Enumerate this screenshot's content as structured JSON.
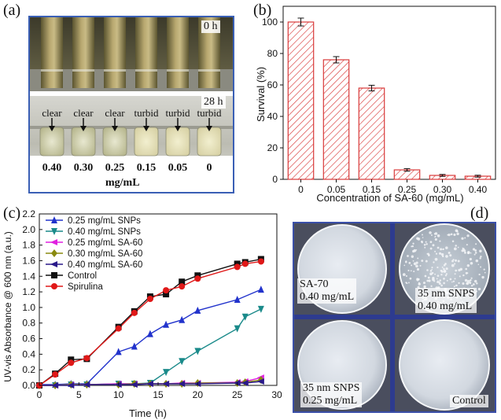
{
  "panels": {
    "a": {
      "label": "(a)",
      "time_top": "0 h",
      "time_bottom": "28 h",
      "states": [
        "clear",
        "clear",
        "clear",
        "turbid",
        "turbid",
        "turbid"
      ],
      "concentrations": [
        "0.40",
        "0.30",
        "0.25",
        "0.15",
        "0.05",
        "0"
      ],
      "unit": "mg/mL"
    },
    "b": {
      "label": "(b)"
    },
    "c": {
      "label": "(c)"
    },
    "d": {
      "label": "(d)",
      "dishes": [
        {
          "line1": "SA-70",
          "line2": "0.40 mg/mL"
        },
        {
          "line1": "35 nm SNPS",
          "line2": "0.40 mg/mL"
        },
        {
          "line1": "35 nm SNPS",
          "line2": "0.25 mg/mL"
        },
        {
          "line1": "Control",
          "line2": ""
        }
      ]
    }
  },
  "chart_data": [
    {
      "type": "bar",
      "panel": "b",
      "categories": [
        "0",
        "0.05",
        "0.15",
        "0.25",
        "0.30",
        "0.40"
      ],
      "values": [
        100,
        76,
        58,
        6,
        2.5,
        2
      ],
      "errors": [
        2.5,
        2,
        1.8,
        0.8,
        0.6,
        0.6
      ],
      "xlabel": "Concentration of SA-60 (mg/mL)",
      "ylabel": "Survival (%)",
      "ylim": [
        0,
        110
      ],
      "yticks": [
        0,
        20,
        40,
        60,
        80,
        100
      ],
      "bar_fill": "hatched",
      "color": "#d93a3a"
    },
    {
      "type": "line",
      "panel": "c",
      "xlabel": "Time (h)",
      "ylabel": "UV-vis Absorbance @ 600 nm (a.u.)",
      "xlim": [
        0,
        30
      ],
      "ylim": [
        0,
        2.2
      ],
      "xticks": [
        0,
        5,
        10,
        15,
        20,
        25,
        30
      ],
      "yticks": [
        0.0,
        0.2,
        0.4,
        0.6,
        0.8,
        1.0,
        1.2,
        1.4,
        1.6,
        1.8,
        2.0,
        2.2
      ],
      "legend_position": "top-left",
      "series": [
        {
          "name": "0.25 mg/mL SNPs",
          "color": "#2233cc",
          "marker": "triangle-up",
          "x": [
            0,
            2,
            4,
            6,
            10,
            12,
            14,
            16,
            18,
            20,
            25,
            28
          ],
          "y": [
            0.01,
            0.01,
            0.02,
            0.02,
            0.43,
            0.5,
            0.66,
            0.78,
            0.84,
            0.96,
            1.1,
            1.23
          ]
        },
        {
          "name": "0.40 mg/mL SNPs",
          "color": "#1a8a8a",
          "marker": "triangle-down",
          "x": [
            0,
            2,
            4,
            6,
            10,
            12,
            14,
            16,
            18,
            20,
            25,
            26,
            28
          ],
          "y": [
            0.0,
            0.0,
            0.01,
            0.01,
            0.02,
            0.02,
            0.03,
            0.17,
            0.31,
            0.44,
            0.73,
            0.88,
            0.98
          ]
        },
        {
          "name": "0.25 mg/mL SA-60",
          "color": "#e020e0",
          "marker": "triangle-left",
          "x": [
            0,
            2,
            4,
            6,
            10,
            12,
            14,
            16,
            18,
            20,
            25,
            26,
            28
          ],
          "y": [
            0.0,
            0.0,
            0.01,
            0.01,
            0.02,
            0.02,
            0.02,
            0.02,
            0.03,
            0.03,
            0.04,
            0.05,
            0.1
          ]
        },
        {
          "name": "0.30 mg/mL SA-60",
          "color": "#8a8a10",
          "marker": "diamond",
          "x": [
            0,
            2,
            4,
            6,
            10,
            12,
            14,
            16,
            18,
            20,
            25,
            26,
            28
          ],
          "y": [
            0.0,
            0.0,
            0.01,
            0.01,
            0.01,
            0.02,
            0.02,
            0.02,
            0.02,
            0.03,
            0.03,
            0.04,
            0.07
          ]
        },
        {
          "name": "0.40 mg/mL SA-60",
          "color": "#2a1a8a",
          "marker": "triangle-left",
          "x": [
            0,
            2,
            4,
            6,
            10,
            12,
            14,
            16,
            18,
            20,
            25,
            26,
            28
          ],
          "y": [
            0.0,
            0.0,
            0.0,
            0.01,
            0.01,
            0.01,
            0.02,
            0.02,
            0.02,
            0.02,
            0.03,
            0.03,
            0.05
          ]
        },
        {
          "name": "Control",
          "color": "#111111",
          "marker": "square",
          "x": [
            0,
            2,
            4,
            6,
            10,
            12,
            14,
            16,
            18,
            20,
            25,
            26,
            28
          ],
          "y": [
            0.0,
            0.15,
            0.33,
            0.34,
            0.75,
            0.95,
            1.14,
            1.17,
            1.33,
            1.41,
            1.56,
            1.58,
            1.62
          ]
        },
        {
          "name": "Spirulina",
          "color": "#e01818",
          "marker": "circle",
          "x": [
            0,
            2,
            4,
            6,
            10,
            12,
            14,
            16,
            18,
            20,
            25,
            26,
            28
          ],
          "y": [
            0.0,
            0.14,
            0.29,
            0.35,
            0.73,
            0.93,
            1.11,
            1.22,
            1.27,
            1.37,
            1.52,
            1.56,
            1.59
          ]
        }
      ]
    }
  ]
}
